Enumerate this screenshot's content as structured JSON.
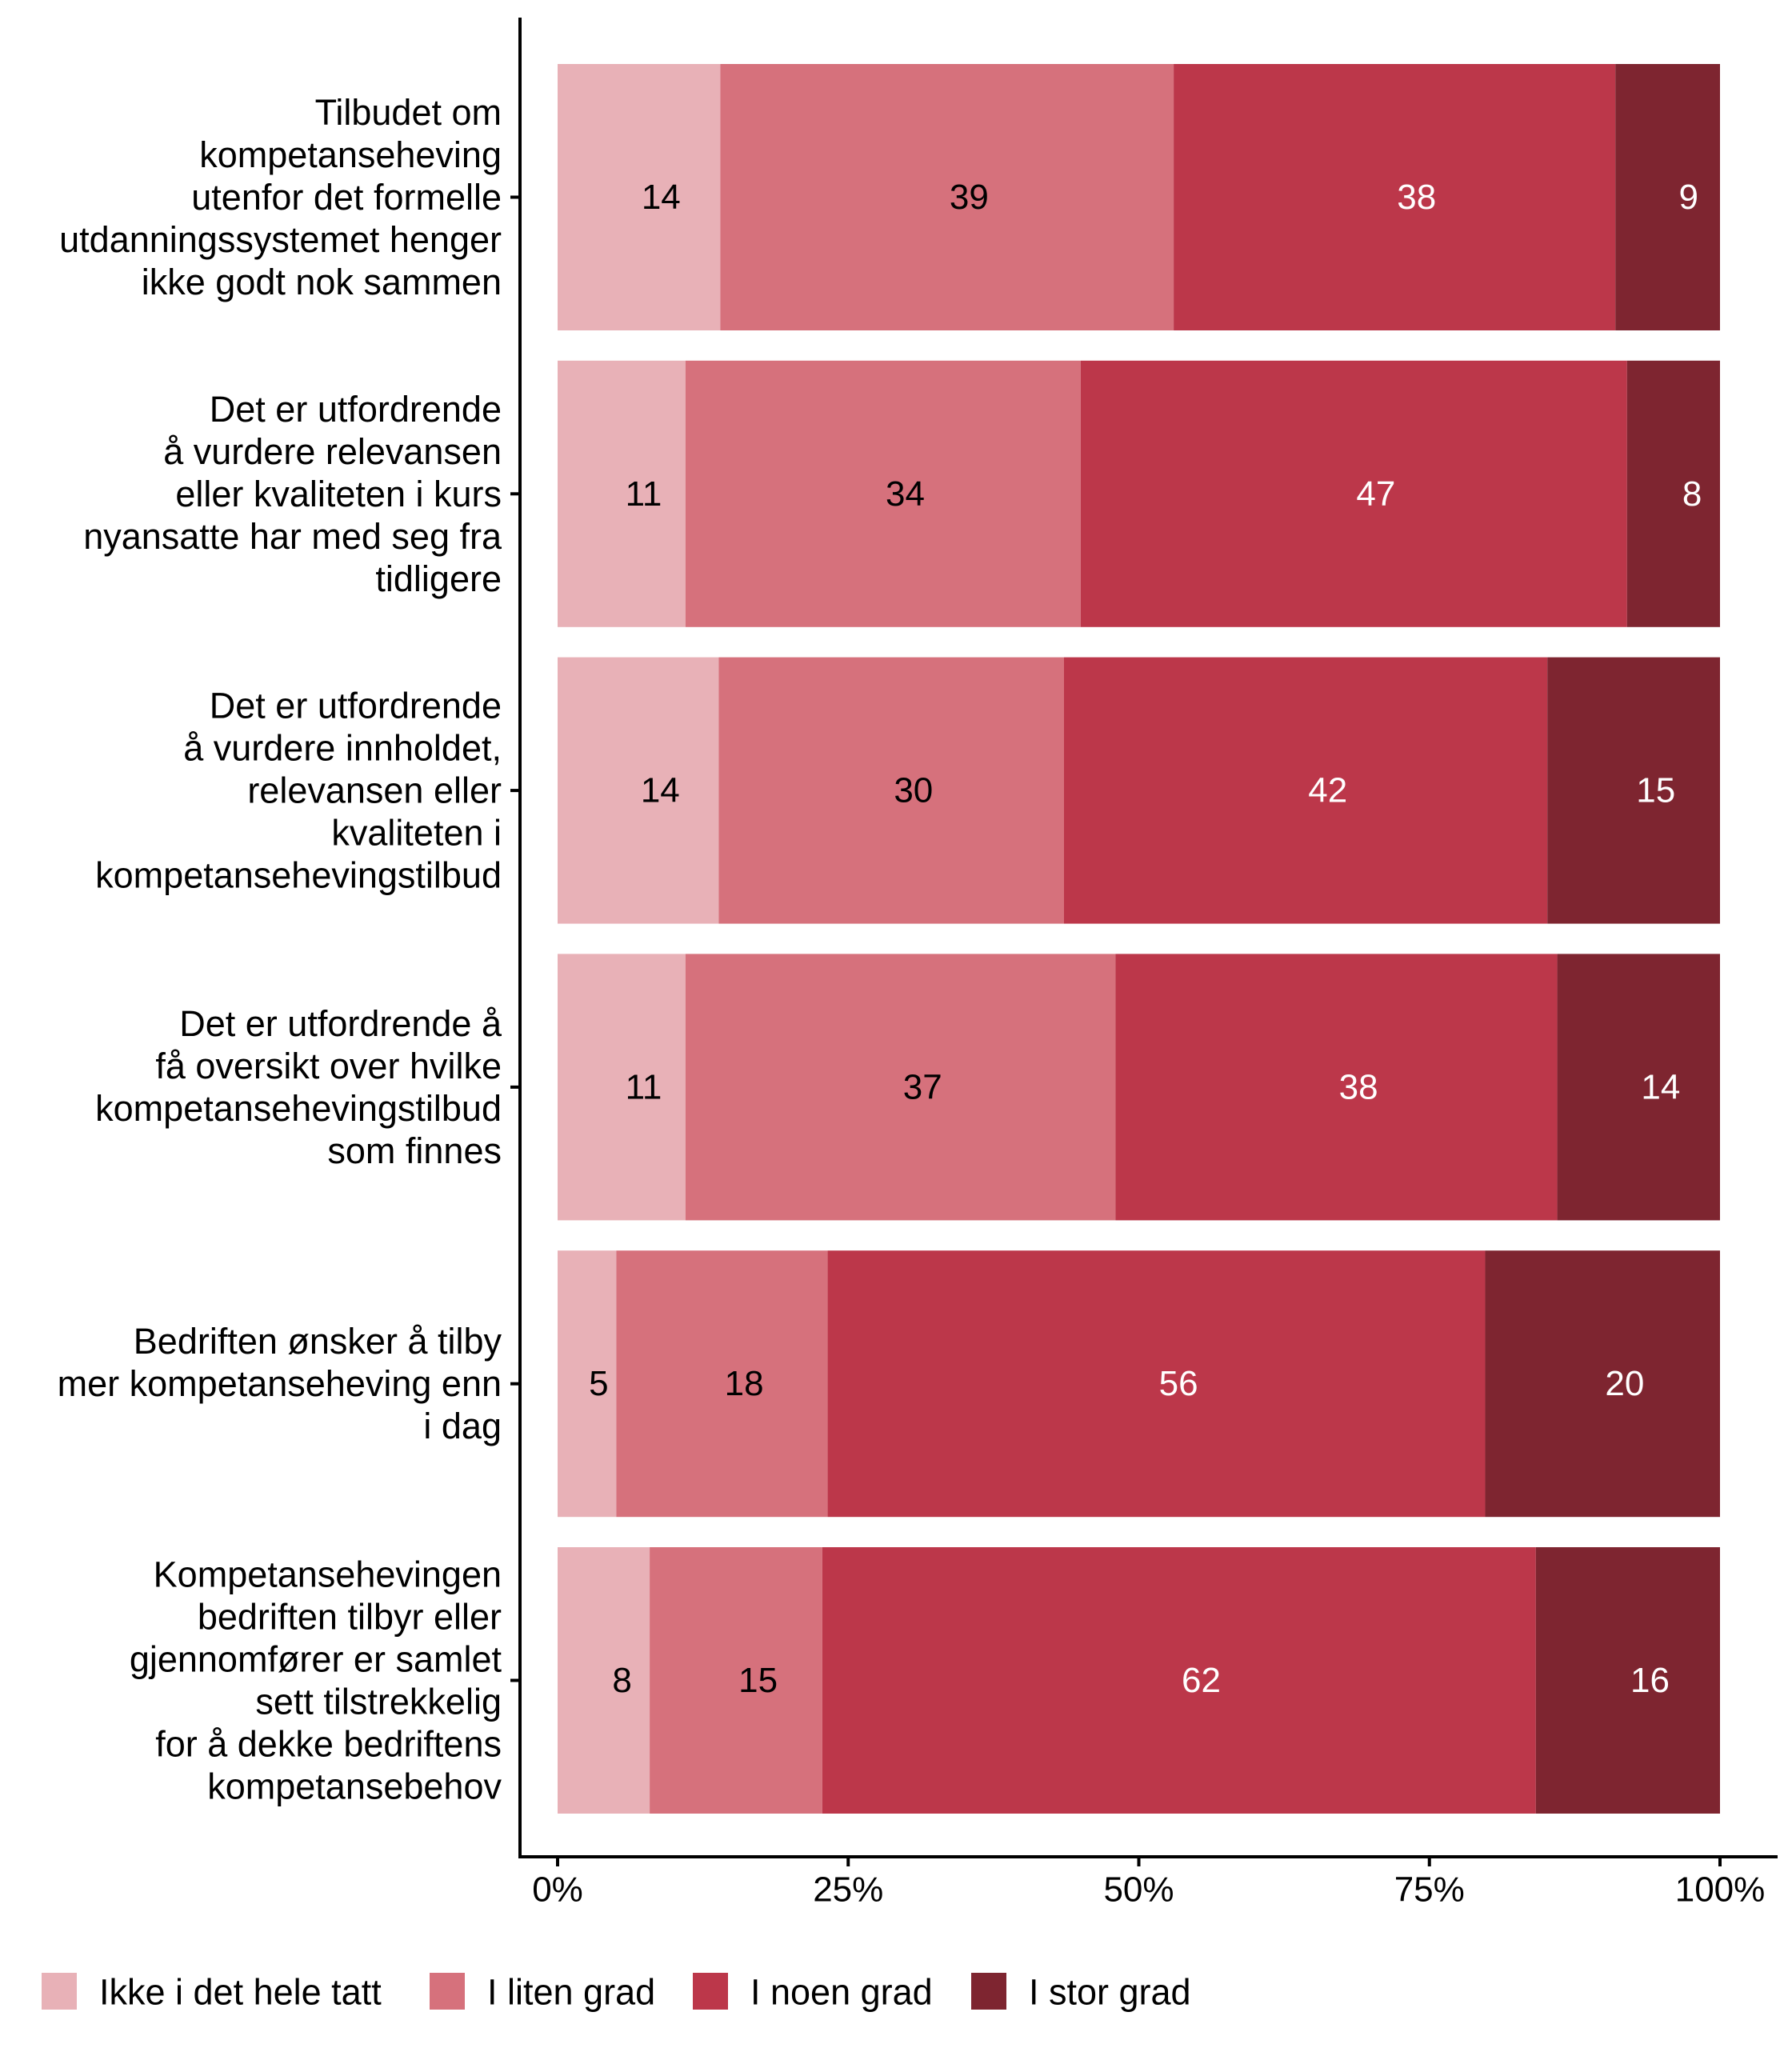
{
  "chart_data": {
    "type": "bar",
    "orientation": "horizontal",
    "stacked": true,
    "normalized_percent": true,
    "title": "",
    "xlabel": "",
    "ylabel": "",
    "xlim": [
      0,
      100
    ],
    "x_ticks": [
      0,
      25,
      50,
      75,
      100
    ],
    "x_tick_labels": [
      "0%",
      "25%",
      "50%",
      "75%",
      "100%"
    ],
    "grid": false,
    "legend_position": "bottom-left",
    "categories": [
      [
        "Tilbudet om",
        "kompetanseheving",
        "utenfor det formelle",
        "utdanningssystemet henger",
        "ikke godt nok sammen"
      ],
      [
        "Det er utfordrende",
        "å vurdere relevansen",
        "eller kvaliteten i kurs",
        "nyansatte har med seg fra",
        "tidligere"
      ],
      [
        "Det er utfordrende",
        "å vurdere innholdet,",
        "relevansen eller",
        "kvaliteten i",
        "kompetansehevingstilbud"
      ],
      [
        "Det er utfordrende å",
        "få oversikt over hvilke",
        "kompetansehevingstilbud",
        "som finnes"
      ],
      [
        "Bedriften ønsker å tilby",
        "mer kompetanseheving enn",
        "i dag"
      ],
      [
        "Kompetansehevingen",
        "bedriften tilbyr eller",
        "gjennomfører er samlet",
        "sett tilstrekkelig",
        "for å dekke bedriftens",
        "kompetansebehov"
      ]
    ],
    "series": [
      {
        "name": "Ikke i det hele tatt",
        "color": "#E8B1B7",
        "label_color": "#000000",
        "values": [
          14,
          11,
          14,
          11,
          5,
          8
        ]
      },
      {
        "name": "I liten grad",
        "color": "#D6717C",
        "label_color": "#000000",
        "values": [
          39,
          34,
          30,
          37,
          18,
          15
        ]
      },
      {
        "name": "I noen grad",
        "color": "#BC374A",
        "label_color": "#FFFFFF",
        "values": [
          38,
          47,
          42,
          38,
          56,
          62
        ]
      },
      {
        "name": "I stor grad",
        "color": "#7E2530",
        "label_color": "#FFFFFF",
        "values": [
          9,
          8,
          15,
          14,
          20,
          16
        ]
      }
    ]
  }
}
